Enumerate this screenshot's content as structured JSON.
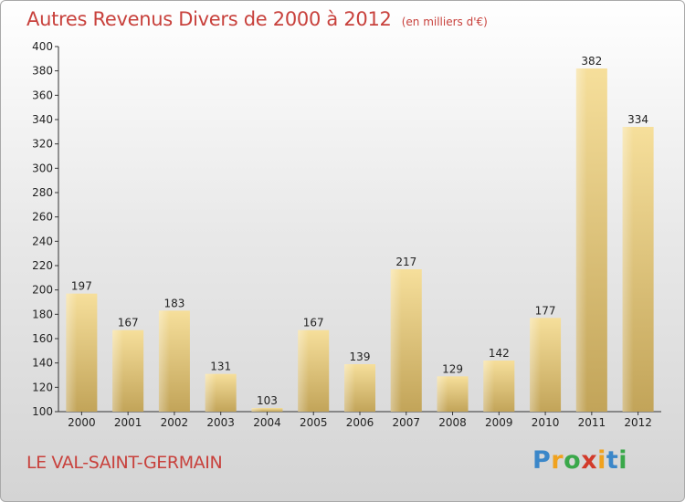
{
  "header": {
    "title": "Autres Revenus Divers de 2000 à 2012",
    "unit": "(en milliers d'€)"
  },
  "footer": {
    "commune": "LE VAL-SAINT-GERMAIN",
    "logo": [
      "P",
      "r",
      "o",
      "x",
      "i",
      "t",
      "i"
    ]
  },
  "colors": {
    "title": "#c8413c",
    "bar_light": "#f4dd97",
    "bar_dark": "#c3a55a"
  },
  "chart_data": {
    "type": "bar",
    "title": "Autres Revenus Divers de 2000 à 2012",
    "categories": [
      "2000",
      "2001",
      "2002",
      "2003",
      "2004",
      "2005",
      "2006",
      "2007",
      "2008",
      "2009",
      "2010",
      "2011",
      "2012"
    ],
    "values": [
      197,
      167,
      183,
      131,
      103,
      167,
      139,
      217,
      129,
      142,
      177,
      382,
      334
    ],
    "ylim": [
      100,
      400
    ],
    "yticks": [
      100,
      120,
      140,
      160,
      180,
      200,
      220,
      240,
      260,
      280,
      300,
      320,
      340,
      360,
      380,
      400
    ],
    "grid": false
  }
}
